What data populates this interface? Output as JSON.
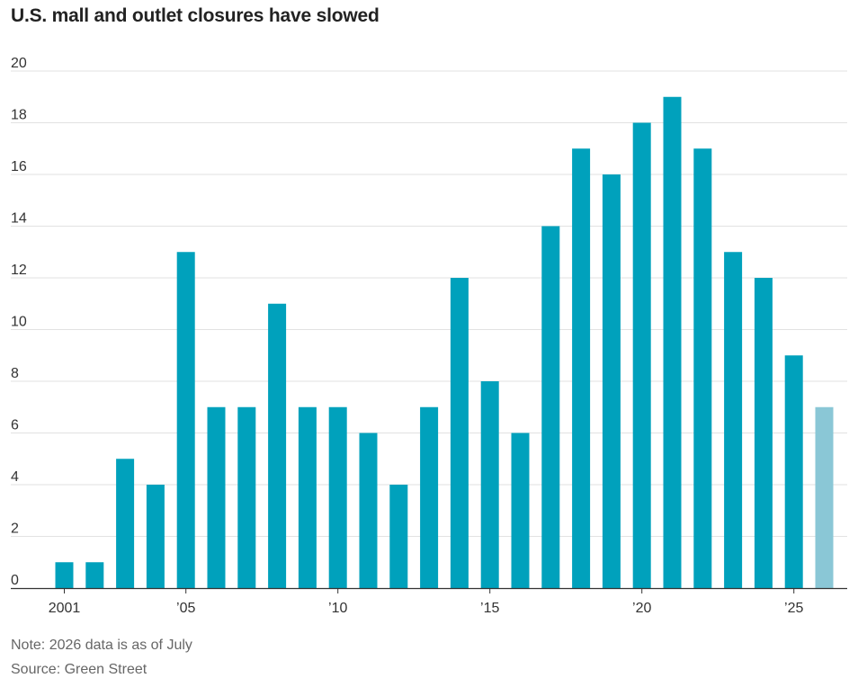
{
  "title": "U.S. mall and outlet closures have slowed",
  "note": "Note: 2026 data is as of July",
  "source": "Source: Green Street",
  "colors": {
    "bar": "#00a1bc",
    "bar_partial": "#8ac7d6",
    "grid": "#e2e2e2",
    "axis": "#333333"
  },
  "chart_data": {
    "type": "bar",
    "title": "U.S. mall and outlet closures have slowed",
    "xlabel": "",
    "ylabel": "",
    "ylim": [
      0,
      20
    ],
    "yticks": [
      0,
      2,
      4,
      6,
      8,
      10,
      12,
      14,
      16,
      18,
      20
    ],
    "categories": [
      "2001",
      "2002",
      "2003",
      "2004",
      "2005",
      "2006",
      "2007",
      "2008",
      "2009",
      "2010",
      "2011",
      "2012",
      "2013",
      "2014",
      "2015",
      "2016",
      "2017",
      "2018",
      "2019",
      "2020",
      "2021",
      "2022",
      "2023",
      "2024",
      "2025",
      "2026"
    ],
    "values": [
      1,
      1,
      5,
      4,
      13,
      7,
      7,
      11,
      7,
      7,
      6,
      4,
      7,
      12,
      8,
      6,
      14,
      17,
      16,
      18,
      19,
      17,
      13,
      12,
      9,
      7
    ],
    "partial": [
      false,
      false,
      false,
      false,
      false,
      false,
      false,
      false,
      false,
      false,
      false,
      false,
      false,
      false,
      false,
      false,
      false,
      false,
      false,
      false,
      false,
      false,
      false,
      false,
      false,
      true
    ],
    "xtick_labels": [
      {
        "category": "2001",
        "label": "2001"
      },
      {
        "category": "2005",
        "label": "’05"
      },
      {
        "category": "2010",
        "label": "’10"
      },
      {
        "category": "2015",
        "label": "’15"
      },
      {
        "category": "2020",
        "label": "’20"
      },
      {
        "category": "2025",
        "label": "’25"
      }
    ],
    "grid": true,
    "legend": "none"
  }
}
